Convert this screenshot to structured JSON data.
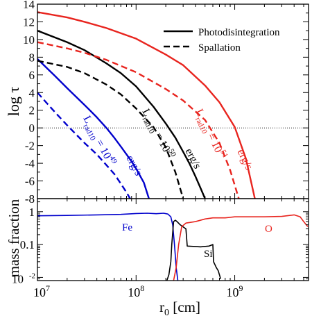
{
  "chart_data": [
    {
      "type": "line",
      "xscale": "log",
      "xlim": [
        10000000.0,
        5600000000.0
      ],
      "ylim": [
        -8,
        14
      ],
      "ylabel": "log τ",
      "yticks": [
        -8,
        -6,
        -4,
        -2,
        0,
        2,
        4,
        6,
        8,
        10,
        12,
        14
      ],
      "hline": 0,
      "legend": {
        "position": "top-right",
        "entries": [
          {
            "label": "Photodisintegration",
            "style": "solid"
          },
          {
            "label": "Spallation",
            "style": "dashed"
          }
        ]
      },
      "annotations": [
        {
          "text": "L",
          "sub": "rad10",
          "rest": " = 10",
          "sup": "49",
          "unit": "erg/s",
          "color": "#0000cc"
        },
        {
          "text": "L",
          "sub": "rad10",
          "rest": " = 10",
          "sup": "50",
          "unit": "erg/s",
          "color": "#000000"
        },
        {
          "text": "L",
          "sub": "rad10",
          "rest": " = 10",
          "sup": "51",
          "unit": "erg/s",
          "color": "#e8241e"
        }
      ],
      "series": [
        {
          "luminosity": "49",
          "process": "Photodisintegration",
          "color": "#0000cc",
          "style": "solid",
          "x": [
            10000000.0,
            15000000.0,
            20000000.0,
            30000000.0,
            40000000.0,
            50000000.0,
            60000000.0,
            70000000.0,
            80000000.0,
            90000000.0,
            100000000.0,
            120000000.0,
            135000000.0
          ],
          "y": [
            7.8,
            5.9,
            4.5,
            2.6,
            1.2,
            0.0,
            -1.1,
            -2.1,
            -3.0,
            -3.8,
            -4.6,
            -6.2,
            -8.0
          ]
        },
        {
          "luminosity": "49",
          "process": "Spallation",
          "color": "#0000cc",
          "style": "dashed",
          "x": [
            10000000.0,
            12000000.0,
            15000000.0,
            20000000.0,
            25000000.0,
            30000000.0,
            40000000.0,
            50000000.0,
            60000000.0,
            70000000.0,
            80000000.0,
            87000000.0
          ],
          "y": [
            4.0,
            3.0,
            1.8,
            0.3,
            -0.8,
            -1.7,
            -3.0,
            -4.2,
            -5.2,
            -6.3,
            -7.3,
            -8.0
          ]
        },
        {
          "luminosity": "50",
          "process": "Photodisintegration",
          "color": "#000000",
          "style": "solid",
          "x": [
            10000000.0,
            20000000.0,
            30000000.0,
            50000000.0,
            70000000.0,
            100000000.0,
            150000000.0,
            200000000.0,
            250000000.0,
            300000000.0,
            350000000.0,
            400000000.0,
            450000000.0,
            500000000.0
          ],
          "y": [
            11.0,
            9.7,
            8.8,
            7.3,
            6.2,
            4.7,
            2.4,
            0.5,
            -1.1,
            -2.7,
            -4.1,
            -5.5,
            -6.8,
            -8.0
          ]
        },
        {
          "luminosity": "50",
          "process": "Spallation",
          "color": "#000000",
          "style": "dashed",
          "x": [
            10000000.0,
            20000000.0,
            30000000.0,
            50000000.0,
            70000000.0,
            100000000.0,
            150000000.0,
            200000000.0,
            250000000.0,
            300000000.0
          ],
          "y": [
            7.6,
            6.9,
            6.2,
            4.9,
            3.8,
            2.2,
            0.1,
            -2.2,
            -5.0,
            -8.0
          ]
        },
        {
          "luminosity": "51",
          "process": "Photodisintegration",
          "color": "#e8241e",
          "style": "solid",
          "x": [
            10000000.0,
            20000000.0,
            30000000.0,
            50000000.0,
            100000000.0,
            200000000.0,
            300000000.0,
            500000000.0,
            700000000.0,
            1000000000.0,
            1300000000.0,
            1600000000.0
          ],
          "y": [
            13.1,
            12.5,
            12.0,
            11.3,
            10.1,
            8.3,
            7.1,
            4.8,
            2.9,
            0.1,
            -3.5,
            -8.0
          ]
        },
        {
          "luminosity": "51",
          "process": "Spallation",
          "color": "#e8241e",
          "style": "dashed",
          "x": [
            10000000.0,
            20000000.0,
            30000000.0,
            50000000.0,
            100000000.0,
            200000000.0,
            300000000.0,
            500000000.0,
            700000000.0,
            900000000.0,
            1100000000.0
          ],
          "y": [
            9.7,
            9.0,
            8.5,
            7.7,
            6.3,
            4.4,
            3.1,
            0.9,
            -1.7,
            -4.8,
            -8.0
          ]
        }
      ]
    },
    {
      "type": "line",
      "xscale": "log",
      "yscale": "log",
      "xlim": [
        10000000.0,
        5600000000.0
      ],
      "ylim": [
        0.008,
        2.5
      ],
      "xlabel": "r",
      "xlabel_sub": "0",
      "xlabel_unit": " [cm]",
      "ylabel": "mass fraction",
      "xticks": [
        {
          "base": "10",
          "exp": "7",
          "value": 10000000.0
        },
        {
          "base": "10",
          "exp": "8",
          "value": 100000000.0
        },
        {
          "base": "10",
          "exp": "9",
          "value": 1000000000.0
        }
      ],
      "yticks": [
        {
          "label": "1",
          "value": 1
        },
        {
          "label": "0.1",
          "value": 0.1
        },
        {
          "base": "10",
          "exp": "-2",
          "value": 0.01
        }
      ],
      "annotations": [
        {
          "text": "Fe",
          "color": "#0000cc"
        },
        {
          "text": "Si",
          "color": "#000000"
        },
        {
          "text": "O",
          "color": "#e8241e"
        }
      ],
      "series": [
        {
          "name": "Fe",
          "color": "#0000cc",
          "x": [
            10000000.0,
            20000000.0,
            40000000.0,
            70000000.0,
            100000000.0,
            130000000.0,
            160000000.0,
            190000000.0,
            210000000.0,
            225000000.0,
            235000000.0,
            245000000.0,
            255000000.0,
            265000000.0
          ],
          "y": [
            0.75,
            0.77,
            0.8,
            0.83,
            0.88,
            0.9,
            0.87,
            0.9,
            0.85,
            0.7,
            0.4,
            0.1,
            0.02,
            0.008
          ]
        },
        {
          "name": "Si",
          "color": "#000000",
          "x": [
            205000000.0,
            215000000.0,
            225000000.0,
            230000000.0,
            240000000.0,
            250000000.0,
            260000000.0,
            280000000.0,
            320000000.0,
            330000000.0,
            450000000.0,
            550000000.0,
            600000000.0,
            610000000.0,
            650000000.0,
            680000000.0,
            700000000.0,
            720000000.0
          ],
          "y": [
            0.008,
            0.012,
            0.03,
            0.1,
            0.5,
            0.55,
            0.5,
            0.4,
            0.3,
            0.09,
            0.085,
            0.09,
            0.1,
            0.03,
            0.02,
            0.016,
            0.012,
            0.009
          ]
        },
        {
          "name": "O",
          "color": "#e8241e",
          "x": [
            240000000.0,
            255000000.0,
            270000000.0,
            290000000.0,
            320000000.0,
            400000000.0,
            500000000.0,
            600000000.0,
            800000000.0,
            1000000000.0,
            2000000000.0,
            3000000000.0,
            4000000000.0,
            4600000000.0,
            5000000000.0,
            5500000000.0
          ],
          "y": [
            0.008,
            0.02,
            0.1,
            0.35,
            0.45,
            0.5,
            0.6,
            0.65,
            0.65,
            0.7,
            0.7,
            0.72,
            0.8,
            0.7,
            0.5,
            0.35
          ]
        }
      ]
    }
  ]
}
